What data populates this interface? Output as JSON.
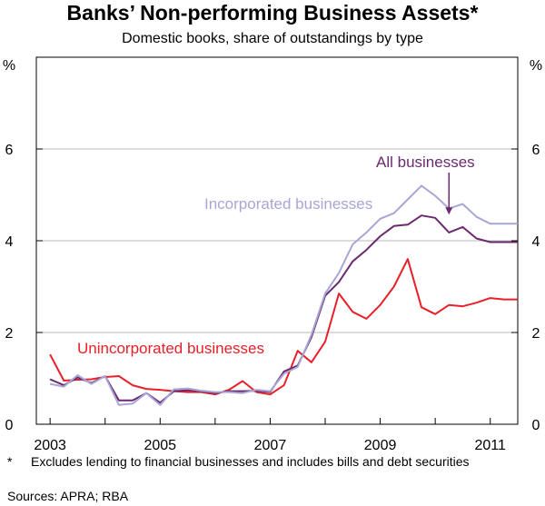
{
  "chart_data": {
    "type": "line",
    "title": "Banks’ Non-performing Business Assets*",
    "subtitle": "Domestic books, share of outstandings by type",
    "ylabel_left": "%",
    "ylabel_right": "%",
    "ylim": [
      0,
      8
    ],
    "yticks": [
      0,
      2,
      4,
      6
    ],
    "ytick_labels": [
      "0",
      "2",
      "4",
      "6"
    ],
    "xlim": [
      2002.75,
      2011.5
    ],
    "xticks": [
      2003,
      2005,
      2007,
      2009,
      2011
    ],
    "xtick_labels": [
      "2003",
      "2005",
      "2007",
      "2009",
      "2011"
    ],
    "grid": true,
    "series": [
      {
        "name": "Unincorporated businesses",
        "color": "#e8202a",
        "x": [
          2003.0,
          2003.25,
          2003.5,
          2003.75,
          2004.0,
          2004.25,
          2004.5,
          2004.75,
          2005.0,
          2005.25,
          2005.5,
          2005.75,
          2006.0,
          2006.25,
          2006.5,
          2006.75,
          2007.0,
          2007.25,
          2007.5,
          2007.75,
          2008.0,
          2008.25,
          2008.5,
          2008.75,
          2009.0,
          2009.25,
          2009.5,
          2009.75,
          2010.0,
          2010.25,
          2010.5,
          2010.75,
          2011.0,
          2011.25,
          2011.5
        ],
        "values": [
          1.52,
          0.95,
          0.97,
          0.98,
          1.03,
          1.05,
          0.85,
          0.77,
          0.75,
          0.72,
          0.7,
          0.7,
          0.65,
          0.75,
          0.94,
          0.7,
          0.65,
          0.85,
          1.6,
          1.35,
          1.8,
          2.85,
          2.45,
          2.3,
          2.6,
          3.0,
          3.6,
          2.55,
          2.4,
          2.6,
          2.57,
          2.65,
          2.75,
          2.72,
          2.72
        ]
      },
      {
        "name": "All businesses",
        "color": "#6b2a6e",
        "x": [
          2003.0,
          2003.25,
          2003.5,
          2003.75,
          2004.0,
          2004.25,
          2004.5,
          2004.75,
          2005.0,
          2005.25,
          2005.5,
          2005.75,
          2006.0,
          2006.25,
          2006.5,
          2006.75,
          2007.0,
          2007.25,
          2007.5,
          2007.75,
          2008.0,
          2008.25,
          2008.5,
          2008.75,
          2009.0,
          2009.25,
          2009.5,
          2009.75,
          2010.0,
          2010.25,
          2010.5,
          2010.75,
          2011.0,
          2011.25,
          2011.5
        ],
        "values": [
          0.98,
          0.85,
          1.02,
          0.9,
          1.05,
          0.52,
          0.52,
          0.68,
          0.47,
          0.72,
          0.74,
          0.72,
          0.68,
          0.72,
          0.72,
          0.73,
          0.7,
          1.15,
          1.28,
          1.9,
          2.8,
          3.1,
          3.55,
          3.8,
          4.1,
          4.32,
          4.35,
          4.55,
          4.5,
          4.18,
          4.3,
          4.05,
          3.97,
          3.97,
          3.97
        ]
      },
      {
        "name": "Incorporated businesses",
        "color": "#a8a6d4",
        "x": [
          2003.0,
          2003.25,
          2003.5,
          2003.75,
          2004.0,
          2004.25,
          2004.5,
          2004.75,
          2005.0,
          2005.25,
          2005.5,
          2005.75,
          2006.0,
          2006.25,
          2006.5,
          2006.75,
          2007.0,
          2007.25,
          2007.5,
          2007.75,
          2008.0,
          2008.25,
          2008.5,
          2008.75,
          2009.0,
          2009.25,
          2009.5,
          2009.75,
          2010.0,
          2010.25,
          2010.5,
          2010.75,
          2011.0,
          2011.25,
          2011.5
        ],
        "values": [
          0.88,
          0.82,
          1.07,
          0.88,
          1.05,
          0.42,
          0.45,
          0.68,
          0.42,
          0.76,
          0.78,
          0.73,
          0.7,
          0.7,
          0.68,
          0.75,
          0.72,
          1.1,
          1.25,
          1.95,
          2.85,
          3.3,
          3.92,
          4.18,
          4.48,
          4.6,
          4.9,
          5.2,
          4.98,
          4.7,
          4.8,
          4.52,
          4.37,
          4.37,
          4.37
        ]
      }
    ],
    "annotations": [
      {
        "text": "All businesses",
        "color": "#6b2a6e",
        "arrow_to": {
          "x": 2010.25,
          "y": 4.55
        }
      },
      {
        "text": "Incorporated businesses",
        "color": "#a8a6d4"
      },
      {
        "text": "Unincorporated businesses",
        "color": "#e8202a"
      }
    ]
  },
  "footnote": {
    "marker": "*",
    "text": "Excludes lending to financial businesses and includes bills and debt securities"
  },
  "sources": "Sources: APRA; RBA"
}
